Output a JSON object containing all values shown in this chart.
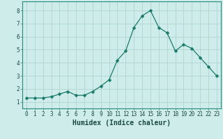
{
  "x": [
    0,
    1,
    2,
    3,
    4,
    5,
    6,
    7,
    8,
    9,
    10,
    11,
    12,
    13,
    14,
    15,
    16,
    17,
    18,
    19,
    20,
    21,
    22,
    23
  ],
  "y": [
    1.3,
    1.3,
    1.3,
    1.4,
    1.6,
    1.8,
    1.5,
    1.5,
    1.8,
    2.2,
    2.7,
    4.2,
    4.9,
    6.7,
    7.6,
    8.0,
    6.7,
    6.3,
    4.9,
    5.4,
    5.1,
    4.4,
    3.7,
    3.0
  ],
  "line_color": "#1a7a6a",
  "marker": "D",
  "marker_size": 2.5,
  "bg_color": "#ceecea",
  "grid_color": "#b0d4d0",
  "xlabel": "Humidex (Indice chaleur)",
  "ylim": [
    0.5,
    8.7
  ],
  "xlim": [
    -0.5,
    23.5
  ],
  "yticks": [
    1,
    2,
    3,
    4,
    5,
    6,
    7,
    8
  ],
  "xticks": [
    0,
    1,
    2,
    3,
    4,
    5,
    6,
    7,
    8,
    9,
    10,
    11,
    12,
    13,
    14,
    15,
    16,
    17,
    18,
    19,
    20,
    21,
    22,
    23
  ],
  "tick_label_fontsize": 5.5,
  "xlabel_fontsize": 7,
  "spine_color": "#2a8a7a"
}
